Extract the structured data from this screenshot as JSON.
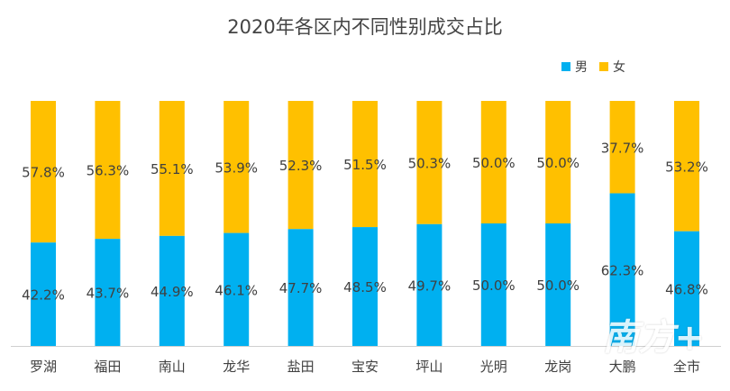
{
  "chart_data": {
    "type": "bar",
    "stacked": true,
    "percent": true,
    "title": "2020年各区内不同性别成交占比",
    "categories": [
      "罗湖",
      "福田",
      "南山",
      "龙华",
      "盐田",
      "宝安",
      "坪山",
      "光明",
      "龙岗",
      "大鹏",
      "全市"
    ],
    "series": [
      {
        "name": "男",
        "color": "#00B0F0",
        "values": [
          42.2,
          43.7,
          44.9,
          46.1,
          47.7,
          48.5,
          49.7,
          50.0,
          50.0,
          62.3,
          46.8
        ]
      },
      {
        "name": "女",
        "color": "#FFC000",
        "values": [
          57.8,
          56.3,
          55.1,
          53.9,
          52.3,
          51.5,
          50.3,
          50.0,
          50.0,
          37.7,
          53.2
        ]
      }
    ],
    "labels": {
      "男": [
        "42.2%",
        "43.7%",
        "44.9%",
        "46.1%",
        "47.7%",
        "48.5%",
        "49.7%",
        "50.0%",
        "50.0%",
        "62.3%",
        "46.8%"
      ],
      "女": [
        "57.8%",
        "56.3%",
        "55.1%",
        "53.9%",
        "52.3%",
        "51.5%",
        "50.3%",
        "50.0%",
        "50.0%",
        "37.7%",
        "53.2%"
      ]
    },
    "ylim": [
      0,
      100
    ],
    "grid": false,
    "legend_position": "top-right"
  },
  "watermark": "南方+"
}
